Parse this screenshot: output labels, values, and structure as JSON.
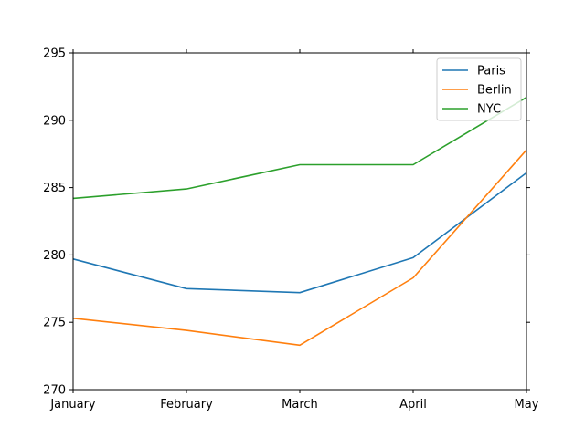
{
  "chart_data": {
    "type": "line",
    "title": "",
    "xlabel": "",
    "ylabel": "",
    "categories": [
      "January",
      "February",
      "March",
      "April",
      "May"
    ],
    "ylim": [
      270,
      295
    ],
    "yticks": [
      270,
      275,
      280,
      285,
      290,
      295
    ],
    "grid": false,
    "legend_position": "top-right",
    "series": [
      {
        "name": "Paris",
        "color": "#1f77b4",
        "values": [
          279.7,
          277.5,
          277.2,
          279.8,
          286.1
        ]
      },
      {
        "name": "Berlin",
        "color": "#ff7f0e",
        "values": [
          275.3,
          274.4,
          273.3,
          278.3,
          287.8
        ]
      },
      {
        "name": "NYC",
        "color": "#2ca02c",
        "values": [
          284.2,
          284.9,
          286.7,
          286.7,
          291.7
        ]
      }
    ]
  }
}
